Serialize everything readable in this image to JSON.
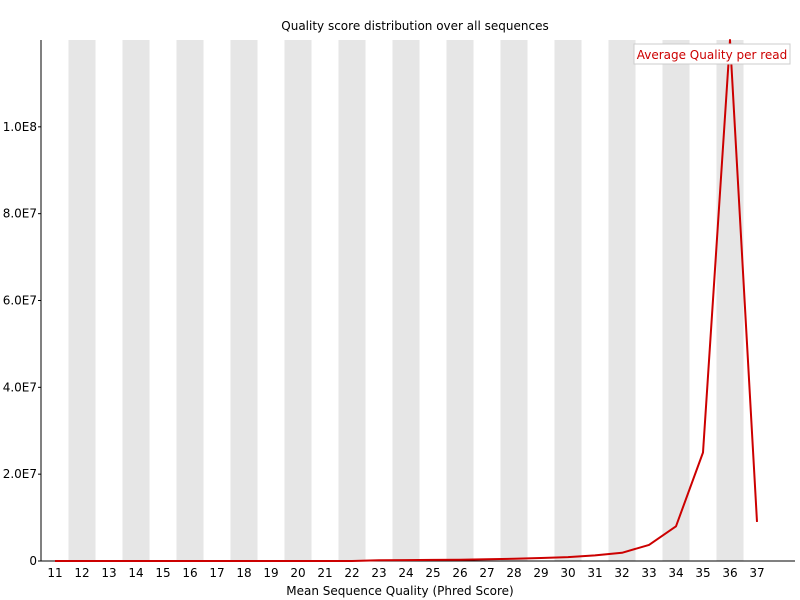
{
  "chart_data": {
    "type": "line",
    "title": "Quality score distribution over all sequences",
    "xlabel": "Mean Sequence Quality (Phred Score)",
    "ylabel": "",
    "x": [
      11,
      12,
      13,
      14,
      15,
      16,
      17,
      18,
      19,
      20,
      21,
      22,
      23,
      24,
      25,
      26,
      27,
      28,
      29,
      30,
      31,
      32,
      33,
      34,
      35,
      36,
      37
    ],
    "xlim": [
      11,
      37
    ],
    "ylim": [
      0,
      120000000
    ],
    "yticks": [
      0,
      20000000,
      40000000,
      60000000,
      80000000,
      100000000
    ],
    "ytick_labels": [
      "0",
      "2.0E7",
      "4.0E7",
      "6.0E7",
      "8.0E7",
      "1.0E8"
    ],
    "grid": "alternating vertical bands",
    "legend_position": "top-right",
    "series": [
      {
        "name": "Average Quality per read",
        "color": "#cc0000",
        "values": [
          0,
          0,
          0,
          0,
          0,
          0,
          0,
          0,
          0,
          0,
          0,
          0,
          150000,
          200000,
          250000,
          300000,
          400000,
          500000,
          700000,
          900000,
          1300000,
          1900000,
          3700000,
          8000000,
          25000000,
          120000000,
          9000000
        ]
      }
    ]
  },
  "colors": {
    "band": "#e6e6e6",
    "axis": "#000000",
    "series": "#cc0000",
    "legend_border": "#cccccc"
  }
}
